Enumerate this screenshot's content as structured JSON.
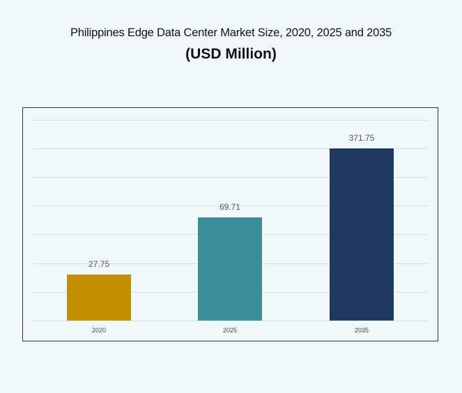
{
  "title": "Philippines Edge Data Center Market Size, 2020, 2025 and 2035",
  "subtitle": "(USD Million)",
  "chart_data": {
    "type": "bar",
    "title": "Philippines Edge Data Center Market Size, 2020, 2025 and 2035 (USD Million)",
    "xlabel": "",
    "ylabel": "USD Million",
    "categories": [
      "2020",
      "2025",
      "2035"
    ],
    "values": [
      27.75,
      69.71,
      371.75
    ],
    "value_labels": [
      "27.75",
      "69.71",
      "371.75"
    ],
    "colors": [
      "#c18f00",
      "#3a8e97",
      "#213961"
    ],
    "grid": true,
    "legend": "none",
    "ylim": [
      0,
      500
    ]
  }
}
